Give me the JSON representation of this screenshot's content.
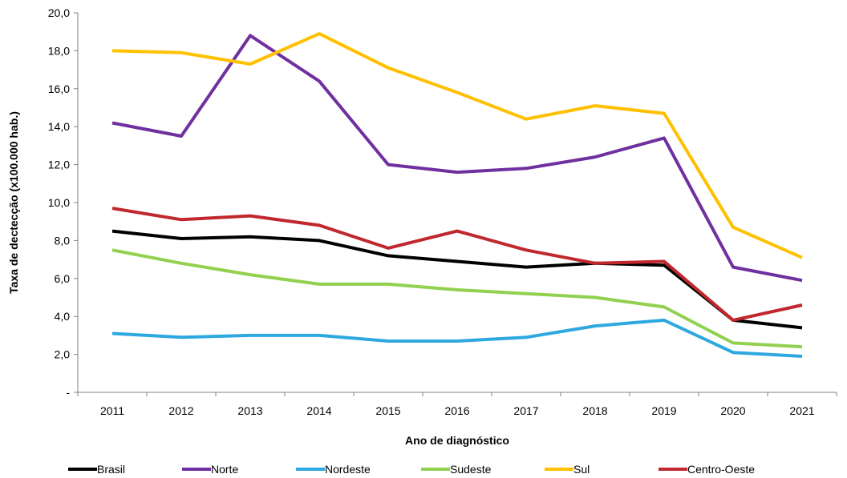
{
  "chart_data": {
    "type": "line",
    "title": "",
    "xlabel": "Ano de diagnóstico",
    "ylabel": "Taxa de dectecção (x100.000 hab.)",
    "ylim": [
      0,
      20
    ],
    "y_ticks": [
      "-",
      "2,0",
      "4,0",
      "6,0",
      "8,0",
      "10,0",
      "12,0",
      "14,0",
      "16,0",
      "18,0",
      "20,0"
    ],
    "grid": false,
    "legend_position": "bottom",
    "categories": [
      "2011",
      "2012",
      "2013",
      "2014",
      "2015",
      "2016",
      "2017",
      "2018",
      "2019",
      "2020",
      "2021"
    ],
    "series": [
      {
        "name": "Brasil",
        "color": "#000000",
        "values": [
          8.5,
          8.1,
          8.2,
          8.0,
          7.2,
          6.9,
          6.6,
          6.8,
          6.7,
          3.8,
          3.4
        ]
      },
      {
        "name": "Norte",
        "color": "#7030A0",
        "values": [
          14.2,
          13.5,
          18.8,
          16.4,
          12.0,
          11.6,
          11.8,
          12.4,
          13.4,
          6.6,
          5.9
        ]
      },
      {
        "name": "Nordeste",
        "color": "#2EA8E0",
        "values": [
          3.1,
          2.9,
          3.0,
          3.0,
          2.7,
          2.7,
          2.9,
          3.5,
          3.8,
          2.1,
          1.9
        ]
      },
      {
        "name": "Sudeste",
        "color": "#92D050",
        "values": [
          7.5,
          6.8,
          6.2,
          5.7,
          5.7,
          5.4,
          5.2,
          5.0,
          4.5,
          2.6,
          2.4
        ]
      },
      {
        "name": "Sul",
        "color": "#FFC000",
        "values": [
          18.0,
          17.9,
          17.3,
          18.9,
          17.1,
          15.8,
          14.4,
          15.1,
          14.7,
          8.7,
          7.1
        ]
      },
      {
        "name": "Centro-Oeste",
        "color": "#C0282D",
        "values": [
          9.7,
          9.1,
          9.3,
          8.8,
          7.6,
          8.5,
          7.5,
          6.8,
          6.9,
          3.8,
          4.6
        ]
      }
    ]
  }
}
